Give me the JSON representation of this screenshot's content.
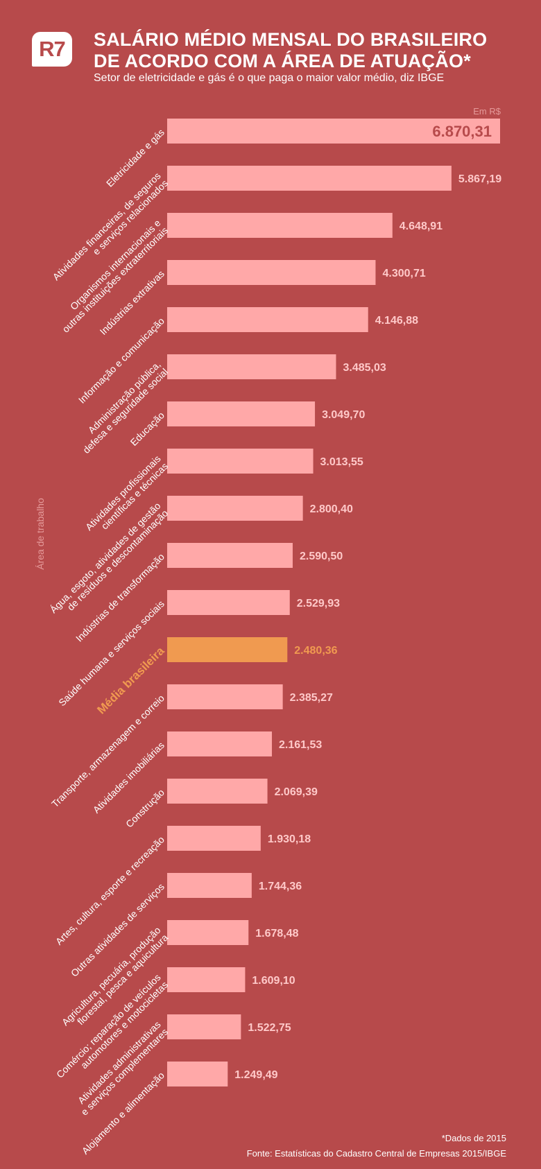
{
  "header": {
    "logo_text": "R7",
    "title_line1": "SALÁRIO MÉDIO MENSAL DO BRASILEIRO",
    "title_line2": "DE ACORDO COM A ÁREA DE ATUAÇÃO*",
    "subtitle": "Setor de eletricidade e gás é o que paga o maior valor médio, diz IBGE"
  },
  "footer": {
    "note": "*Dados de 2015",
    "source": "Fonte: Estatísticas do Cadastro Central de Empresas 2015/IBGE"
  },
  "colors": {
    "background": "#b74a4b",
    "bar": "#ffa8a8",
    "highlight": "#f09a50",
    "value_label": "#ffc9c9",
    "top_value_label": "#b74a4b"
  },
  "chart_data": {
    "type": "bar",
    "orientation": "horizontal",
    "ylabel": "Área de trabalho",
    "unit_label": "Em R$",
    "xlim": [
      0,
      6870.31
    ],
    "grid": false,
    "highlight_category": "Média brasileira",
    "categories": [
      "Eletricidade e gás",
      "Atividades financeiras, de seguros\ne serviços relacionados",
      "Organismos internacionais e\noutras instituições extraterritoriais",
      "Indústrias extrativas",
      "Informação e comunicação",
      "Administração pública,\ndefesa e seguridade social",
      "Educação",
      "Atividades profissionais\ncientíficas e técnicas",
      "Água, esgoto, atividades de gestão\nde resíduos e descontaminação",
      "Indústrias de transformação",
      "Saúde humana e serviços sociais",
      "Média brasileira",
      "Transporte, armazenagem e correio",
      "Atividades imobiliárias",
      "Construção",
      "Artes, cultura, esporte e recreação",
      "Outras atividades de serviços",
      "Agricultura, pecuária, produção\nflorestal, pesca e aquicultura",
      "Comércio; reparação de veículos\nautomotores e motocicletas",
      "Atividades administrativas\ne serviços complementares",
      "Alojamento e alimentação"
    ],
    "values": [
      6870.31,
      5867.19,
      4648.91,
      4300.71,
      4146.88,
      3485.03,
      3049.7,
      3013.55,
      2800.4,
      2590.5,
      2529.93,
      2480.36,
      2385.27,
      2161.53,
      2069.39,
      1930.18,
      1744.36,
      1678.48,
      1609.1,
      1522.75,
      1249.49
    ],
    "value_labels": [
      "6.870,31",
      "5.867,19",
      "4.648,91",
      "4.300,71",
      "4.146,88",
      "3.485,03",
      "3.049,70",
      "3.013,55",
      "2.800,40",
      "2.590,50",
      "2.529,93",
      "2.480,36",
      "2.385,27",
      "2.161,53",
      "2.069,39",
      "1.930,18",
      "1.744,36",
      "1.678,48",
      "1.609,10",
      "1.522,75",
      "1.249,49"
    ]
  }
}
